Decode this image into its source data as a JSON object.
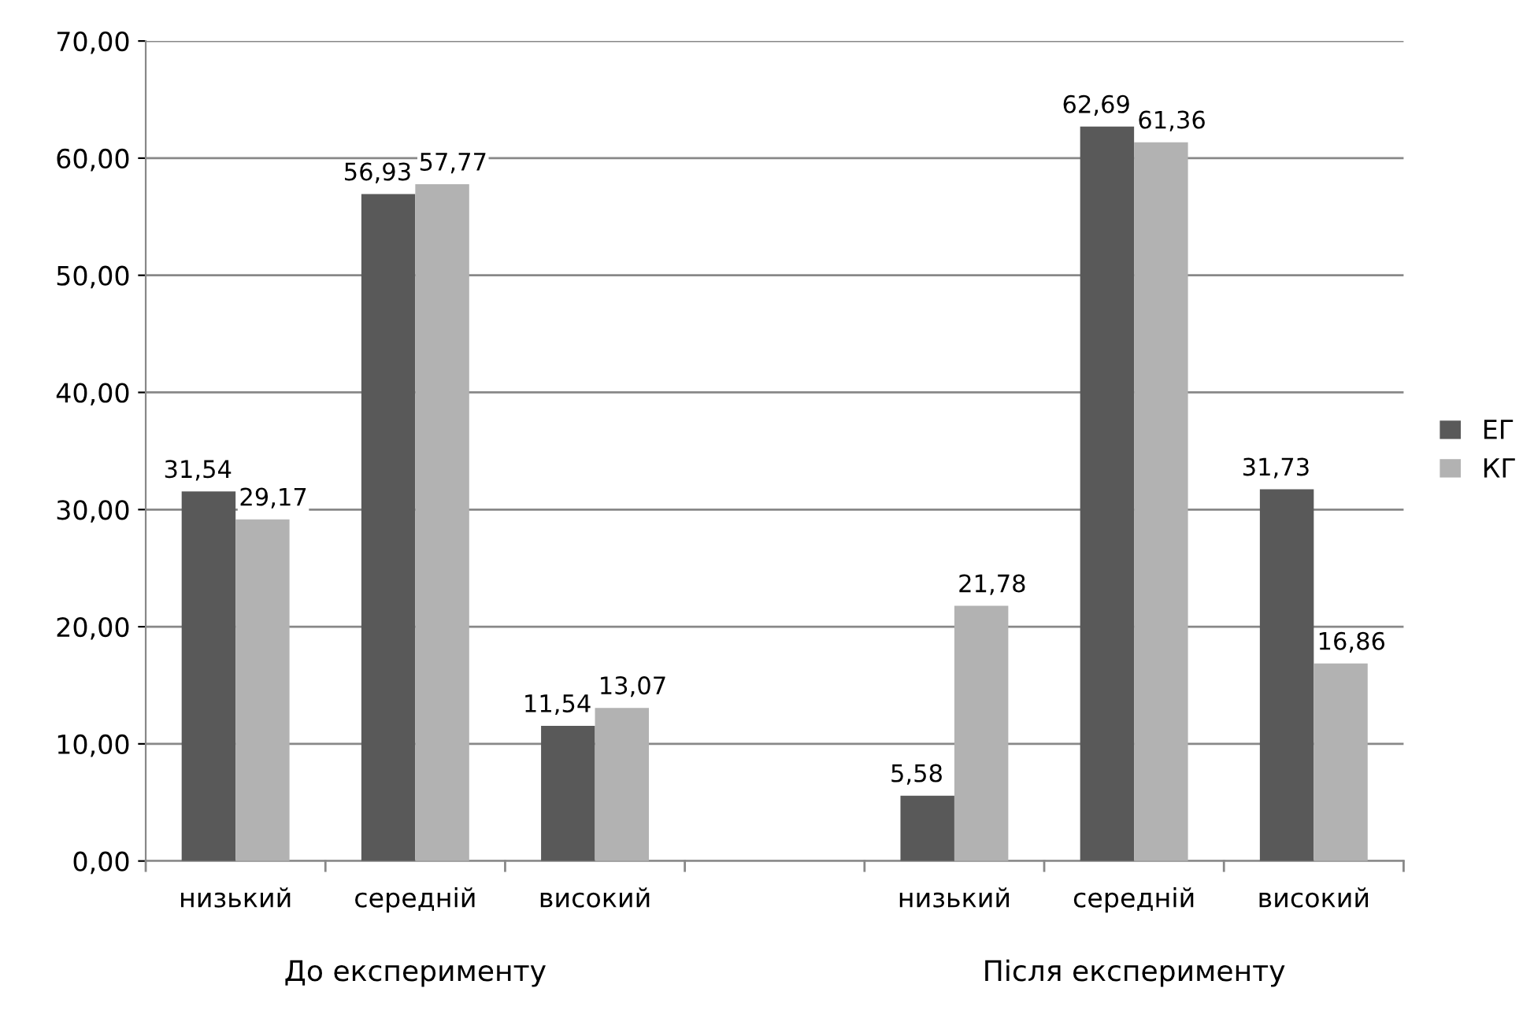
{
  "chart_data": {
    "type": "bar",
    "categories": [
      "низький",
      "середній",
      "високий",
      null,
      "низький",
      "середній",
      "високий"
    ],
    "series": [
      {
        "name": "ЕГ",
        "color": "#595959",
        "values": [
          31.54,
          56.93,
          11.54,
          null,
          5.58,
          62.69,
          31.73
        ],
        "value_labels": [
          "31,54",
          "56,93",
          "11,54",
          null,
          "5,58",
          "62,69",
          "31,73"
        ]
      },
      {
        "name": "КГ",
        "color": "#b2b2b2",
        "values": [
          29.17,
          57.77,
          13.07,
          null,
          21.78,
          61.36,
          16.86
        ],
        "value_labels": [
          "29,17",
          "57,77",
          "13,07",
          null,
          "21,78",
          "61,36",
          "16,86"
        ]
      }
    ],
    "ylim": [
      0,
      70
    ],
    "yticks": [
      {
        "value": 0,
        "label": "0,00"
      },
      {
        "value": 10,
        "label": "10,00"
      },
      {
        "value": 20,
        "label": "20,00"
      },
      {
        "value": 30,
        "label": "30,00"
      },
      {
        "value": 40,
        "label": "40,00"
      },
      {
        "value": 50,
        "label": "50,00"
      },
      {
        "value": 60,
        "label": "60,00"
      },
      {
        "value": 70,
        "label": "70,00"
      }
    ],
    "grid": "y",
    "legend": "right",
    "annotations": [
      "До експерименту",
      "Після експерименту"
    ]
  }
}
